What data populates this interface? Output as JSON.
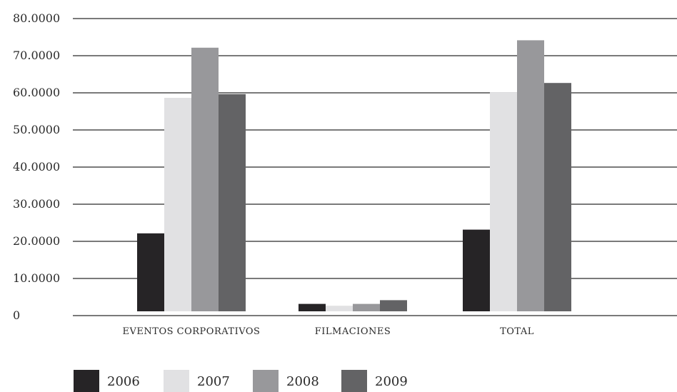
{
  "chart_data": {
    "type": "bar",
    "categories": [
      "EVENTOS CORPORATIVOS",
      "FILMACIONES",
      "TOTAL"
    ],
    "series": [
      {
        "name": "2006",
        "values": [
          21.0,
          2.0,
          22.0
        ],
        "color": "#262426"
      },
      {
        "name": "2007",
        "values": [
          57.5,
          1.5,
          59.0
        ],
        "color": "#e1e1e3"
      },
      {
        "name": "2008",
        "values": [
          71.0,
          2.0,
          73.0
        ],
        "color": "#98989b"
      },
      {
        "name": "2009",
        "values": [
          58.5,
          3.0,
          61.5
        ],
        "color": "#636365"
      }
    ],
    "yticks": [
      {
        "value": 0,
        "label": "0"
      },
      {
        "value": 10,
        "label": "10.0000"
      },
      {
        "value": 20,
        "label": "20.0000"
      },
      {
        "value": 30,
        "label": "30.0000"
      },
      {
        "value": 40,
        "label": "40.0000"
      },
      {
        "value": 50,
        "label": "50.0000"
      },
      {
        "value": 60,
        "label": "60.0000"
      },
      {
        "value": 70,
        "label": "70.0000"
      },
      {
        "value": 80,
        "label": "80.0000"
      }
    ],
    "ylim": [
      0,
      80
    ],
    "grid": true,
    "legend_position": "bottom-left",
    "title": "",
    "xlabel": "",
    "ylabel": ""
  }
}
